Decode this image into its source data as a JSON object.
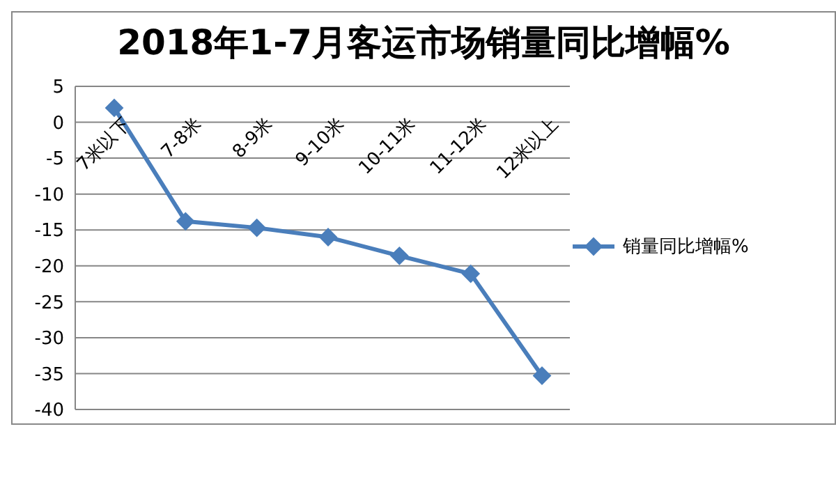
{
  "chart_data": {
    "type": "line",
    "title": "2018年1-7月客运市场销量同比增幅%",
    "categories": [
      "7米以下",
      "7-8米",
      "8-9米",
      "9-10米",
      "10-11米",
      "11-12米",
      "12米以上"
    ],
    "series": [
      {
        "name": "销量同比增幅%",
        "color": "#4a7ebb",
        "values": [
          2.0,
          -13.8,
          -14.7,
          -16.0,
          -18.6,
          -21.1,
          -35.3
        ]
      }
    ],
    "ylim": [
      -40,
      5
    ],
    "yticks": [
      5,
      0,
      -5,
      -10,
      -15,
      -20,
      -25,
      -30,
      -35,
      -40
    ],
    "grid": "y",
    "legend": "right",
    "marker": "diamond",
    "line_style": "solid"
  }
}
